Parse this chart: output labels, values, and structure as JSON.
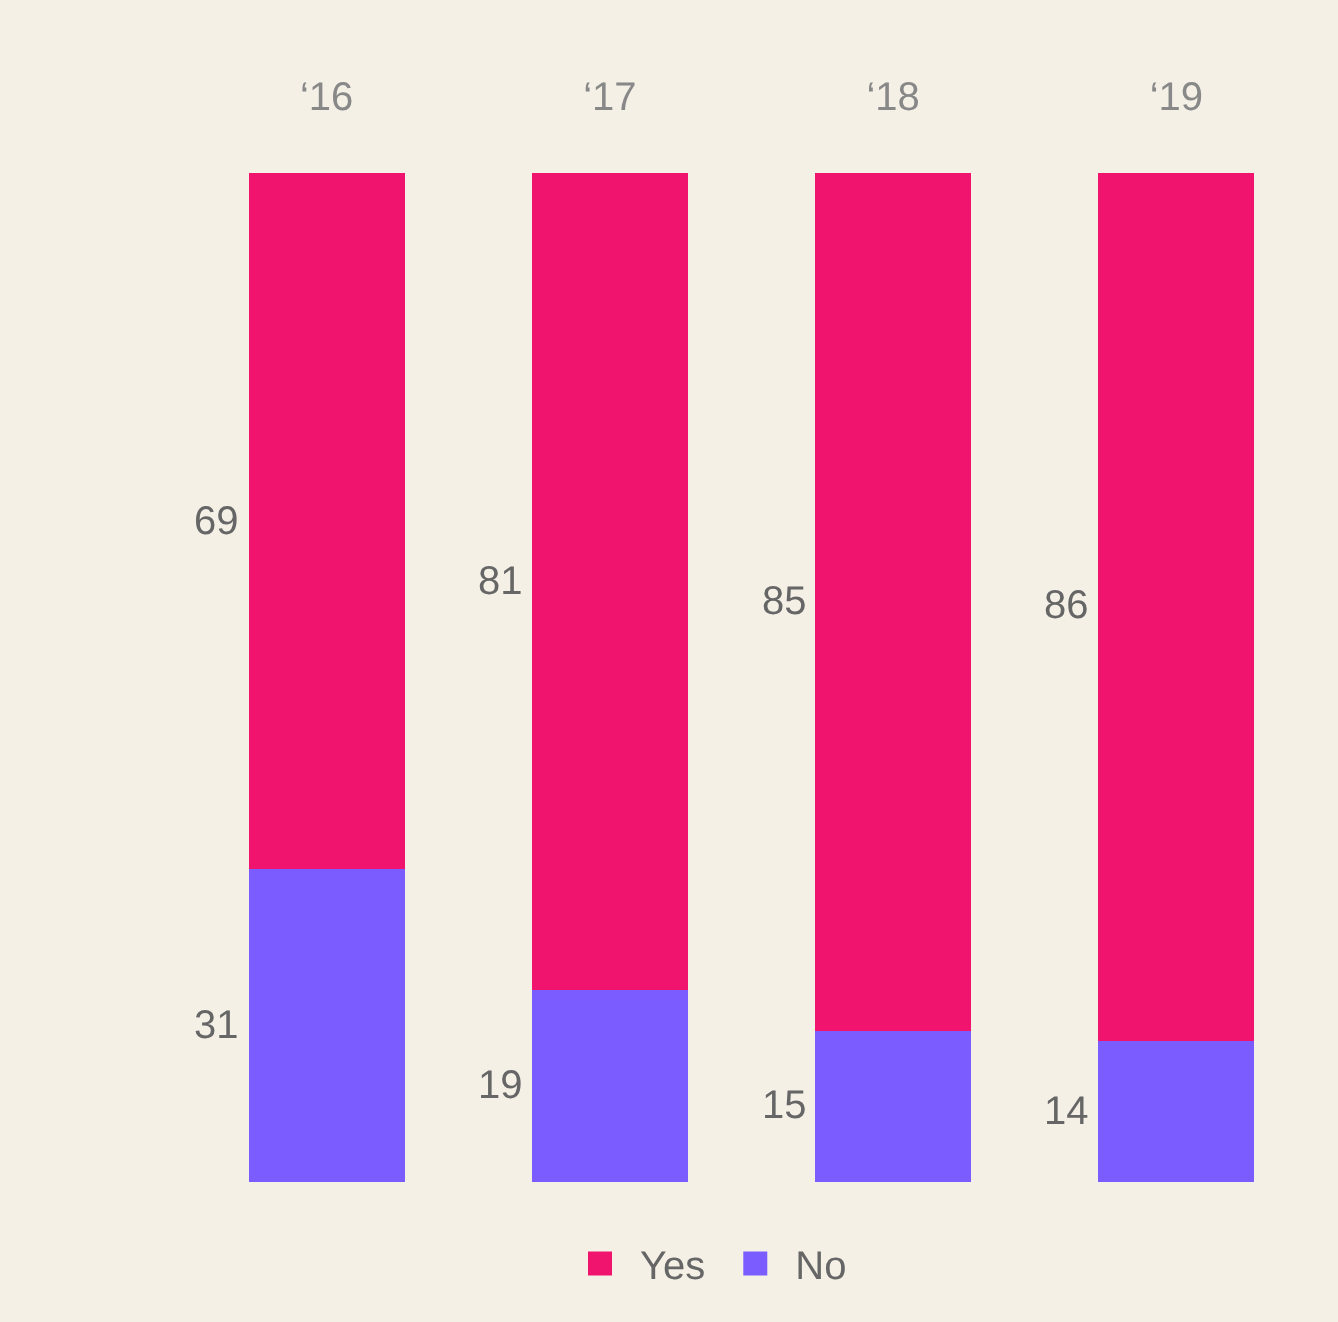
{
  "chart_data": {
    "type": "bar",
    "stacked": true,
    "categories": [
      "‘16",
      "‘17",
      "‘18",
      "‘19"
    ],
    "series": [
      {
        "name": "No",
        "color": "#7b5cff",
        "values": [
          31,
          19,
          15,
          14
        ]
      },
      {
        "name": "Yes",
        "color": "#f0146e",
        "values": [
          69,
          81,
          85,
          86
        ]
      }
    ],
    "data_labels": true,
    "legend": "bottom",
    "grid": false
  }
}
